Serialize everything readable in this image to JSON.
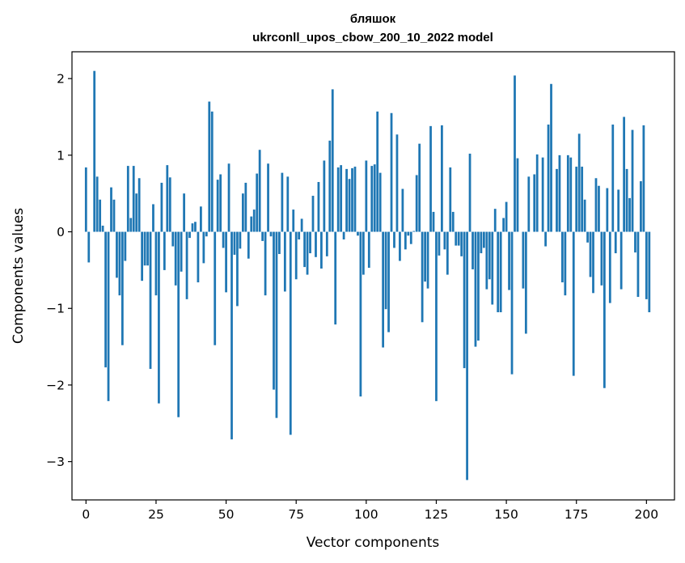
{
  "chart_data": {
    "type": "bar",
    "title": "бляшок",
    "subtitle": "ukrconll_upos_cbow_200_10_2022 model",
    "xlabel": "Vector components",
    "ylabel": "Components values",
    "xlim": [
      -5,
      210
    ],
    "ylim": [
      -3.5,
      2.35
    ],
    "xticks": [
      0,
      25,
      50,
      75,
      100,
      125,
      150,
      175,
      200
    ],
    "yticks": [
      -3,
      -2,
      -1,
      0,
      1,
      2
    ],
    "ytick_labels": [
      "−3",
      "−2",
      "−1",
      "0",
      "1",
      "2"
    ],
    "grid": false,
    "bar_color": "#1f77b4",
    "values": [
      0.84,
      -0.4,
      0.0,
      2.1,
      0.72,
      0.42,
      0.08,
      -1.77,
      -2.21,
      0.58,
      0.42,
      -0.6,
      -0.83,
      -1.48,
      -0.38,
      0.86,
      0.18,
      0.86,
      0.5,
      0.7,
      -0.64,
      -0.44,
      -0.44,
      -1.79,
      0.36,
      -0.83,
      -2.24,
      0.64,
      -0.5,
      0.87,
      0.71,
      -0.19,
      -0.7,
      -2.42,
      -0.52,
      0.5,
      -0.88,
      -0.08,
      0.11,
      0.13,
      -0.66,
      0.33,
      -0.41,
      -0.06,
      1.7,
      1.57,
      -1.48,
      0.68,
      0.75,
      -0.21,
      -0.79,
      0.89,
      -2.71,
      -0.3,
      -0.97,
      -0.22,
      0.5,
      0.64,
      -0.35,
      0.2,
      0.29,
      0.76,
      1.07,
      -0.12,
      -0.83,
      0.89,
      -0.06,
      -2.06,
      -2.43,
      -0.29,
      0.77,
      -0.78,
      0.72,
      -2.65,
      0.29,
      -0.62,
      -0.1,
      0.17,
      -0.46,
      -0.56,
      -0.28,
      0.47,
      -0.33,
      0.65,
      -0.48,
      0.93,
      -0.32,
      1.19,
      1.86,
      -1.21,
      0.84,
      0.87,
      -0.1,
      0.82,
      0.69,
      0.83,
      0.85,
      -0.05,
      -2.15,
      -0.56,
      0.93,
      -0.47,
      0.86,
      0.88,
      1.57,
      0.77,
      -1.51,
      -1.01,
      -1.31,
      1.55,
      -0.21,
      1.27,
      -0.38,
      0.56,
      -0.23,
      -0.05,
      -0.16,
      0.01,
      0.74,
      1.15,
      -1.18,
      -0.65,
      -0.74,
      1.38,
      0.26,
      -2.21,
      -0.31,
      1.39,
      -0.23,
      -0.56,
      0.84,
      0.26,
      -0.18,
      -0.18,
      -0.32,
      -1.78,
      -3.24,
      1.02,
      -0.49,
      -1.5,
      -1.42,
      -0.28,
      -0.21,
      -0.75,
      -0.62,
      -0.95,
      0.3,
      -1.05,
      -1.05,
      0.18,
      0.39,
      -0.76,
      -1.86,
      2.04,
      0.96,
      0.0,
      -0.74,
      -1.33,
      0.72,
      0.0,
      0.75,
      1.01,
      0.0,
      0.97,
      -0.19,
      1.4,
      1.93,
      0.0,
      0.82,
      1.0,
      -0.66,
      -0.83,
      1.0,
      0.97,
      -1.88,
      0.85,
      1.28,
      0.85,
      0.42,
      -0.14,
      -0.59,
      -0.8,
      0.7,
      0.6,
      -0.7,
      -2.04,
      0.57,
      -0.93,
      1.4,
      -0.28,
      0.55,
      -0.75,
      1.5,
      0.82,
      0.44,
      1.33,
      -0.27,
      -0.85,
      0.66,
      1.39,
      -0.88,
      -1.05
    ]
  }
}
